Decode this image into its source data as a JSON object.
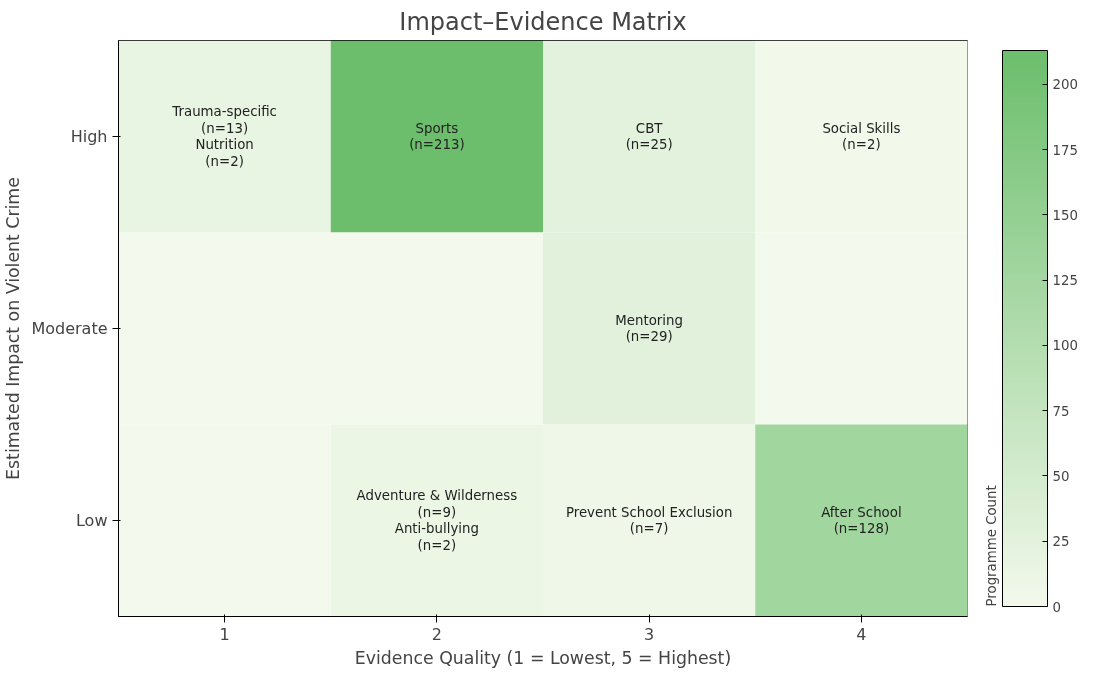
{
  "chart_data": {
    "type": "heatmap",
    "title": "Impact–Evidence Matrix",
    "xlabel": "Evidence Quality (1 = Lowest, 5 = Highest)",
    "ylabel": "Estimated Impact on Violent Crime",
    "clabel": "Programme Count",
    "categories": [
      "1",
      "2",
      "3",
      "4"
    ],
    "y_categories": [
      "High",
      "Moderate",
      "Low"
    ],
    "cells": [
      [
        15,
        213,
        25,
        2
      ],
      [
        0,
        0,
        29,
        0
      ],
      [
        0,
        11,
        7,
        128
      ]
    ],
    "cell_labels": [
      [
        "Trauma-specific\n(n=13)\nNutrition\n(n=2)",
        "Sports\n(n=213)",
        "CBT\n(n=25)",
        "Social Skills\n(n=2)"
      ],
      [
        null,
        null,
        "Mentoring\n(n=29)",
        null
      ],
      [
        null,
        "Adventure & Wilderness\n(n=9)\nAnti-bullying\n(n=2)",
        "Prevent School Exclusion\n(n=7)",
        "After School\n(n=128)"
      ]
    ],
    "clim": [
      0,
      213
    ],
    "cticks": [
      0,
      25,
      50,
      75,
      100,
      125,
      150,
      175,
      200
    ]
  }
}
